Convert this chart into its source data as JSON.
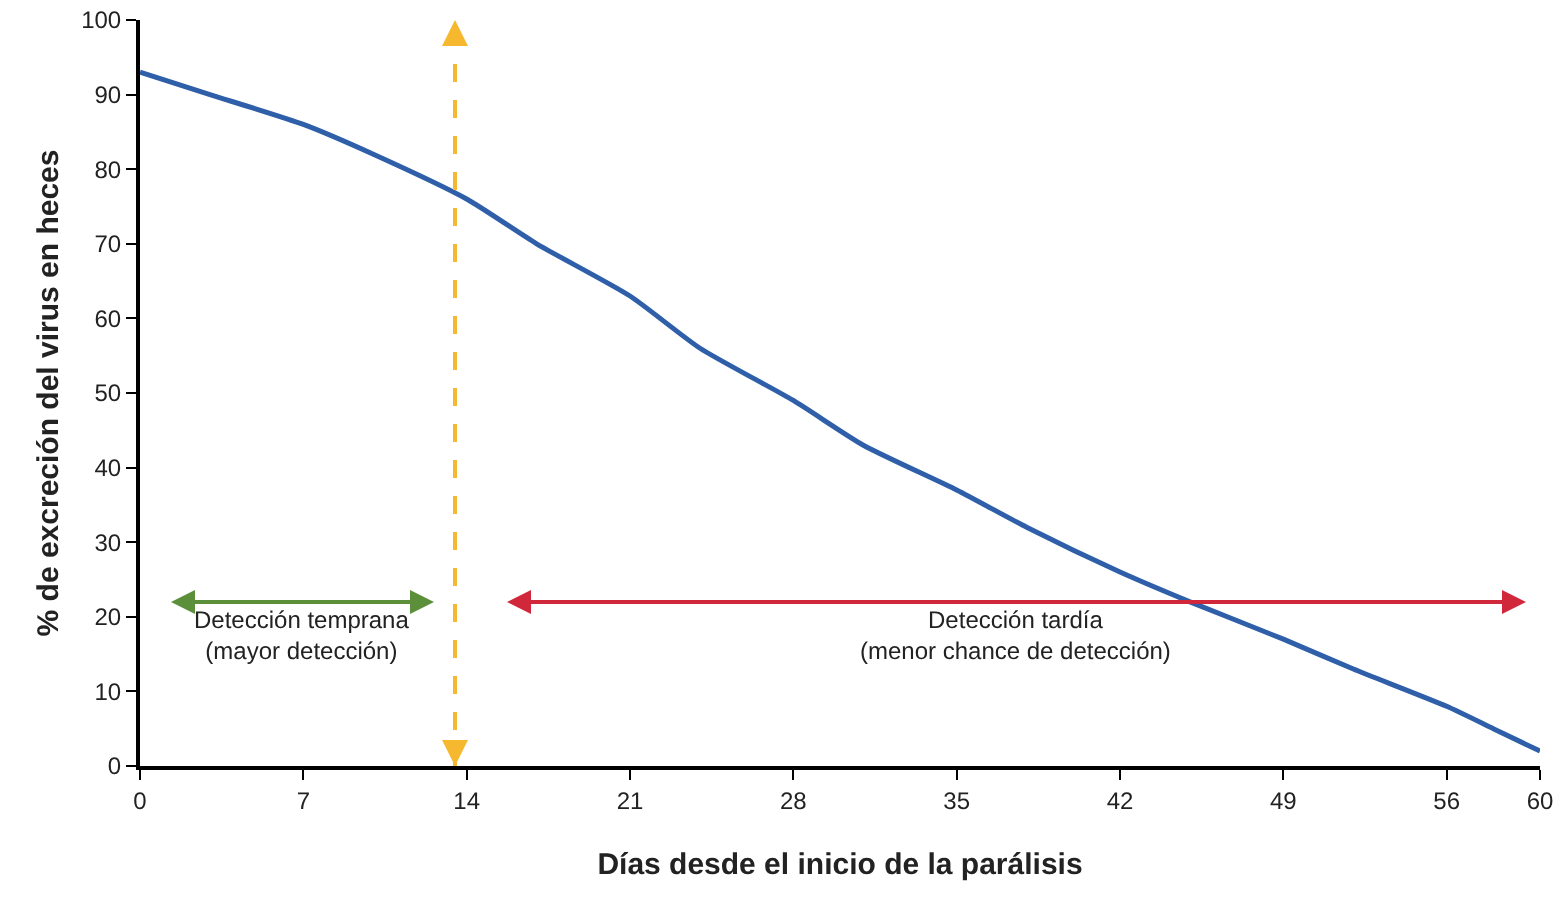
{
  "chart_data": {
    "type": "line",
    "xlabel": "Días desde el inicio de la parálisis",
    "ylabel": "% de excreción del virus en heces",
    "x": [
      0,
      3,
      7,
      10,
      14,
      17,
      21,
      24,
      28,
      31,
      35,
      38,
      42,
      45,
      49,
      52,
      56,
      58,
      60
    ],
    "series": [
      {
        "color": "#2e5fa8",
        "values": [
          93,
          90,
          86,
          82,
          76,
          70,
          63,
          56,
          49,
          43,
          37,
          32,
          26,
          22,
          17,
          13,
          8,
          5,
          2
        ]
      }
    ],
    "xlim": [
      0,
      60
    ],
    "xticks": [
      0,
      7,
      14,
      21,
      28,
      35,
      42,
      49,
      56,
      60
    ],
    "ylim": [
      0,
      100
    ],
    "yticks": [
      0,
      10,
      20,
      30,
      40,
      50,
      60,
      70,
      80,
      90,
      100
    ],
    "grid": false,
    "marker": "none",
    "line_style": "solid",
    "ref_lines": [
      {
        "axis": "x",
        "value": 13.5,
        "color": "#f5b82e",
        "line_style": "dashed"
      }
    ],
    "annotations": [
      "Detección temprana\n(mayor detección)",
      "Detección tardía\n(menor chance de detección)"
    ]
  }
}
